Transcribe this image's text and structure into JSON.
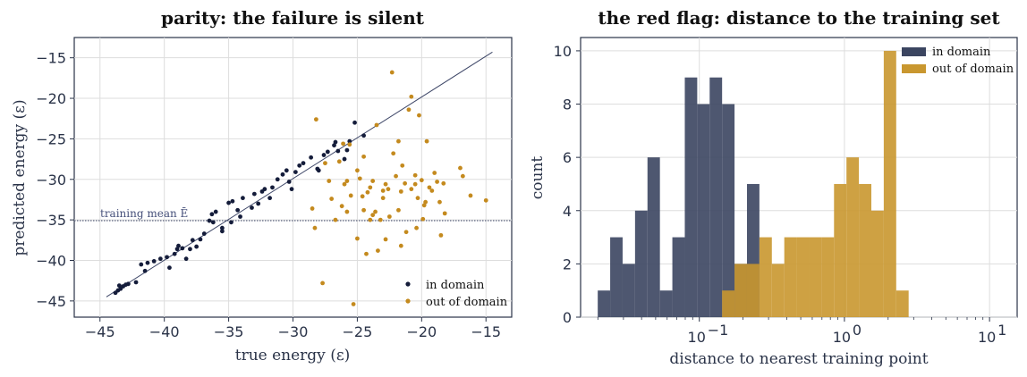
{
  "colors": {
    "in_domain": "#141c3a",
    "out_domain": "#c48a1e",
    "hist_in": "#3b4560",
    "hist_out": "#c9972f",
    "axis": "#2a3348",
    "grid": "#dddddd"
  },
  "chart_data": [
    {
      "type": "scatter",
      "title": "parity: the failure is silent",
      "xlabel": "true energy (ε)",
      "ylabel": "predicted energy (ε)",
      "xlim": [
        -47,
        -13
      ],
      "ylim": [
        -47,
        -12.5
      ],
      "xticks": [
        -45,
        -40,
        -35,
        -30,
        -25,
        -20,
        -15
      ],
      "yticks": [
        -45,
        -40,
        -35,
        -30,
        -25,
        -20,
        -15
      ],
      "grid": true,
      "legend_position": "bottom-right",
      "diagonal": [
        [
          -44.5,
          -44.5
        ],
        [
          -14.5,
          -14.3
        ]
      ],
      "reference_line": {
        "y": -35.1,
        "label": "training mean Ē"
      },
      "series": [
        {
          "name": "in domain",
          "points": [
            [
              -43.8,
              -44.0
            ],
            [
              -43.6,
              -43.7
            ],
            [
              -43.4,
              -43.5
            ],
            [
              -43.2,
              -43.2
            ],
            [
              -43.0,
              -43.0
            ],
            [
              -43.5,
              -43.1
            ],
            [
              -42.8,
              -42.9
            ],
            [
              -42.2,
              -42.7
            ],
            [
              -41.5,
              -41.3
            ],
            [
              -41.8,
              -40.5
            ],
            [
              -41.3,
              -40.3
            ],
            [
              -40.8,
              -40.1
            ],
            [
              -40.3,
              -39.8
            ],
            [
              -39.8,
              -39.6
            ],
            [
              -39.6,
              -40.9
            ],
            [
              -39.2,
              -39.2
            ],
            [
              -39.0,
              -38.6
            ],
            [
              -38.9,
              -38.2
            ],
            [
              -38.6,
              -38.5
            ],
            [
              -38.3,
              -39.8
            ],
            [
              -38.0,
              -38.6
            ],
            [
              -37.8,
              -37.5
            ],
            [
              -37.5,
              -38.3
            ],
            [
              -37.2,
              -37.4
            ],
            [
              -36.9,
              -36.7
            ],
            [
              -36.5,
              -35.1
            ],
            [
              -36.2,
              -35.3
            ],
            [
              -36.3,
              -34.3
            ],
            [
              -35.5,
              -36.4
            ],
            [
              -35.5,
              -36.0
            ],
            [
              -35.0,
              -32.9
            ],
            [
              -34.7,
              -32.7
            ],
            [
              -34.3,
              -33.8
            ],
            [
              -33.9,
              -32.3
            ],
            [
              -34.1,
              -34.6
            ],
            [
              -33.2,
              -33.5
            ],
            [
              -32.7,
              -33.0
            ],
            [
              -32.4,
              -31.5
            ],
            [
              -32.2,
              -31.2
            ],
            [
              -31.8,
              -32.3
            ],
            [
              -31.6,
              -31.0
            ],
            [
              -31.2,
              -30.0
            ],
            [
              -30.8,
              -29.4
            ],
            [
              -30.5,
              -28.9
            ],
            [
              -30.3,
              -30.3
            ],
            [
              -30.1,
              -31.2
            ],
            [
              -29.8,
              -29.1
            ],
            [
              -29.5,
              -28.3
            ],
            [
              -29.2,
              -28.0
            ],
            [
              -28.6,
              -27.3
            ],
            [
              -28.1,
              -28.7
            ],
            [
              -27.6,
              -27.0
            ],
            [
              -27.3,
              -26.6
            ],
            [
              -26.8,
              -25.8
            ],
            [
              -26.5,
              -26.5
            ],
            [
              -26.7,
              -25.4
            ],
            [
              -25.8,
              -26.4
            ],
            [
              -25.6,
              -25.3
            ],
            [
              -25.2,
              -23.0
            ],
            [
              -28.0,
              -28.9
            ],
            [
              -26.0,
              -27.5
            ],
            [
              -24.5,
              -24.6
            ],
            [
              -34.8,
              -35.3
            ],
            [
              -36.0,
              -34.0
            ],
            [
              -33.0,
              -31.8
            ]
          ]
        },
        {
          "name": "out of domain",
          "points": [
            [
              -28.2,
              -22.6
            ],
            [
              -27.7,
              -42.8
            ],
            [
              -28.5,
              -33.6
            ],
            [
              -28.3,
              -36.0
            ],
            [
              -27.5,
              -28.0
            ],
            [
              -27.2,
              -30.2
            ],
            [
              -26.7,
              -35.0
            ],
            [
              -26.4,
              -27.8
            ],
            [
              -26.1,
              -25.6
            ],
            [
              -25.8,
              -30.2
            ],
            [
              -25.5,
              -32.0
            ],
            [
              -25.6,
              -25.7
            ],
            [
              -25.3,
              -45.4
            ],
            [
              -25.0,
              -28.9
            ],
            [
              -24.8,
              -29.9
            ],
            [
              -24.6,
              -32.1
            ],
            [
              -24.5,
              -33.8
            ],
            [
              -24.3,
              -39.2
            ],
            [
              -24.2,
              -31.6
            ],
            [
              -24.0,
              -31.0
            ],
            [
              -23.8,
              -34.4
            ],
            [
              -23.6,
              -34.0
            ],
            [
              -23.5,
              -23.3
            ],
            [
              -23.4,
              -38.8
            ],
            [
              -23.2,
              -35.0
            ],
            [
              -23.0,
              -32.3
            ],
            [
              -22.8,
              -30.6
            ],
            [
              -22.6,
              -31.2
            ],
            [
              -22.5,
              -34.6
            ],
            [
              -22.3,
              -16.8
            ],
            [
              -22.0,
              -29.6
            ],
            [
              -21.8,
              -25.3
            ],
            [
              -21.6,
              -31.5
            ],
            [
              -21.3,
              -30.5
            ],
            [
              -21.2,
              -36.5
            ],
            [
              -21.0,
              -21.4
            ],
            [
              -20.8,
              -31.2
            ],
            [
              -20.5,
              -30.6
            ],
            [
              -20.3,
              -32.3
            ],
            [
              -20.2,
              -22.1
            ],
            [
              -20.0,
              -30.1
            ],
            [
              -19.8,
              -33.2
            ],
            [
              -19.6,
              -25.3
            ],
            [
              -19.4,
              -31.0
            ],
            [
              -19.2,
              -31.4
            ],
            [
              -19.0,
              -29.2
            ],
            [
              -18.8,
              -30.3
            ],
            [
              -18.6,
              -32.8
            ],
            [
              -18.5,
              -36.9
            ],
            [
              -17.0,
              -28.6
            ],
            [
              -16.8,
              -29.6
            ],
            [
              -16.2,
              -32.0
            ],
            [
              -15.0,
              -32.6
            ],
            [
              -20.8,
              -19.8
            ],
            [
              -19.7,
              -32.8
            ],
            [
              -23.8,
              -30.2
            ],
            [
              -24.5,
              -27.2
            ],
            [
              -26.0,
              -30.6
            ],
            [
              -27.0,
              -32.4
            ],
            [
              -25.0,
              -37.3
            ],
            [
              -21.8,
              -33.8
            ],
            [
              -20.5,
              -29.5
            ],
            [
              -18.3,
              -30.5
            ],
            [
              -22.8,
              -37.4
            ],
            [
              -21.5,
              -28.3
            ],
            [
              -24.0,
              -35.0
            ],
            [
              -26.2,
              -33.3
            ],
            [
              -18.2,
              -34.2
            ],
            [
              -20.4,
              -36.0
            ],
            [
              -22.2,
              -26.8
            ],
            [
              -25.8,
              -34.0
            ],
            [
              -23.0,
              -31.4
            ],
            [
              -19.9,
              -34.9
            ],
            [
              -21.6,
              -38.2
            ]
          ]
        }
      ]
    },
    {
      "type": "histogram",
      "title": "the red flag: distance to the training set",
      "xlabel": "distance to nearest training point",
      "ylabel": "count",
      "xscale": "log",
      "xlim": [
        0.0152,
        15.5
      ],
      "ylim": [
        0,
        10.5
      ],
      "xticks_exp": [
        -1,
        0,
        1
      ],
      "yticks": [
        0,
        2,
        4,
        6,
        8,
        10
      ],
      "grid": true,
      "legend_position": "top-right",
      "bin_start_log10": -1.7,
      "bin_width_log10": 0.0857,
      "series": [
        {
          "name": "in domain",
          "start_bin": 0,
          "counts": [
            1,
            3,
            2,
            4,
            6,
            1,
            3,
            9,
            8,
            9,
            8,
            2,
            5,
            0,
            0
          ]
        },
        {
          "name": "out of domain",
          "start_bin": 10,
          "counts": [
            1,
            2,
            2,
            3,
            2,
            3,
            3,
            3,
            3,
            5,
            6,
            5,
            4,
            10,
            1
          ]
        }
      ]
    }
  ]
}
